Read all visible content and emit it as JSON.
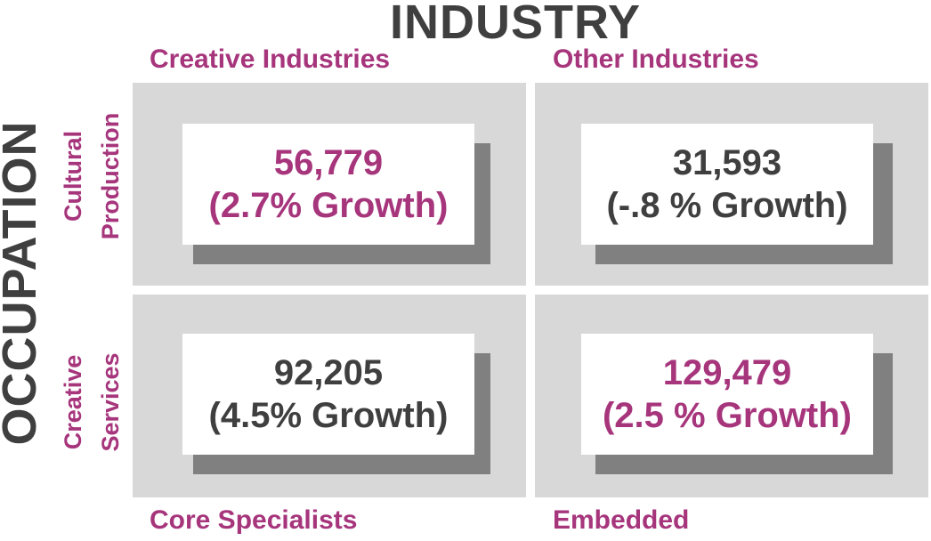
{
  "title": "INDUSTRY",
  "side_title": "OCCUPATION",
  "columns": [
    {
      "label": "Creative Industries"
    },
    {
      "label": "Other Industries"
    }
  ],
  "rows": [
    {
      "label_line1": "Cultural",
      "label_line2": "Production"
    },
    {
      "label_line1": "Creative",
      "label_line2": "Services"
    }
  ],
  "footers": [
    {
      "label": "Core Specialists"
    },
    {
      "label": "Embedded"
    }
  ],
  "cells": [
    {
      "value": "56,779",
      "growth": "(2.7% Growth)",
      "color": "#a6357c"
    },
    {
      "value": "31,593",
      "growth": "(-.8 % Growth)",
      "color": "#3f3f3f"
    },
    {
      "value": "92,205",
      "growth": "(4.5% Growth)",
      "color": "#3f3f3f"
    },
    {
      "value": "129,479",
      "growth": "(2.5 % Growth)",
      "color": "#a6357c"
    }
  ]
}
